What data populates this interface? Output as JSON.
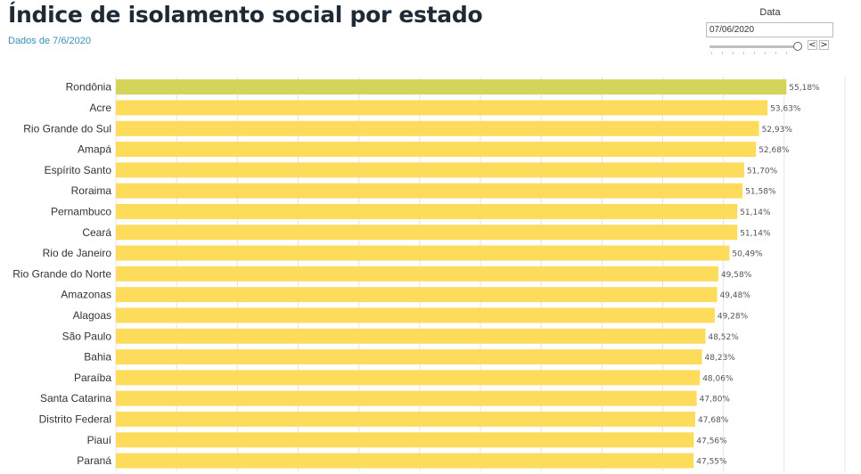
{
  "header": {
    "title": "Índice de isolamento social por estado",
    "subtitle": "Dados de 7/6/2020"
  },
  "date_filter": {
    "label": "Data",
    "value": "07/06/2020",
    "prev_label": "<",
    "next_label": ">"
  },
  "colors": {
    "highlight_bar": "#d4d35a",
    "bar": "#fddc5c",
    "value_label": "#555555",
    "category_label": "#333333",
    "grid": "#e4e4e4"
  },
  "chart_data": {
    "type": "bar",
    "orientation": "horizontal",
    "title": "Índice de isolamento social por estado",
    "subtitle": "Dados de 7/6/2020",
    "categories": [
      "Rondônia",
      "Acre",
      "Rio Grande do Sul",
      "Amapá",
      "Espírito Santo",
      "Roraima",
      "Pernambuco",
      "Ceará",
      "Rio de Janeiro",
      "Rio Grande do Norte",
      "Amazonas",
      "Alagoas",
      "São Paulo",
      "Bahia",
      "Paraíba",
      "Santa Catarina",
      "Distrito Federal",
      "Piauí",
      "Paraná"
    ],
    "values": [
      55.18,
      53.63,
      52.93,
      52.68,
      51.7,
      51.58,
      51.14,
      51.14,
      50.49,
      49.58,
      49.48,
      49.28,
      48.52,
      48.23,
      48.06,
      47.8,
      47.68,
      47.56,
      47.55
    ],
    "value_labels": [
      "55,18%",
      "53,63%",
      "52,93%",
      "52,68%",
      "51,70%",
      "51,58%",
      "51,14%",
      "51,14%",
      "50,49%",
      "49,58%",
      "49,48%",
      "49,28%",
      "48,52%",
      "48,23%",
      "48,06%",
      "47,80%",
      "47,68%",
      "47,56%",
      "47,55%"
    ],
    "xlim": [
      0,
      60
    ],
    "grid": true,
    "legend": "none"
  }
}
